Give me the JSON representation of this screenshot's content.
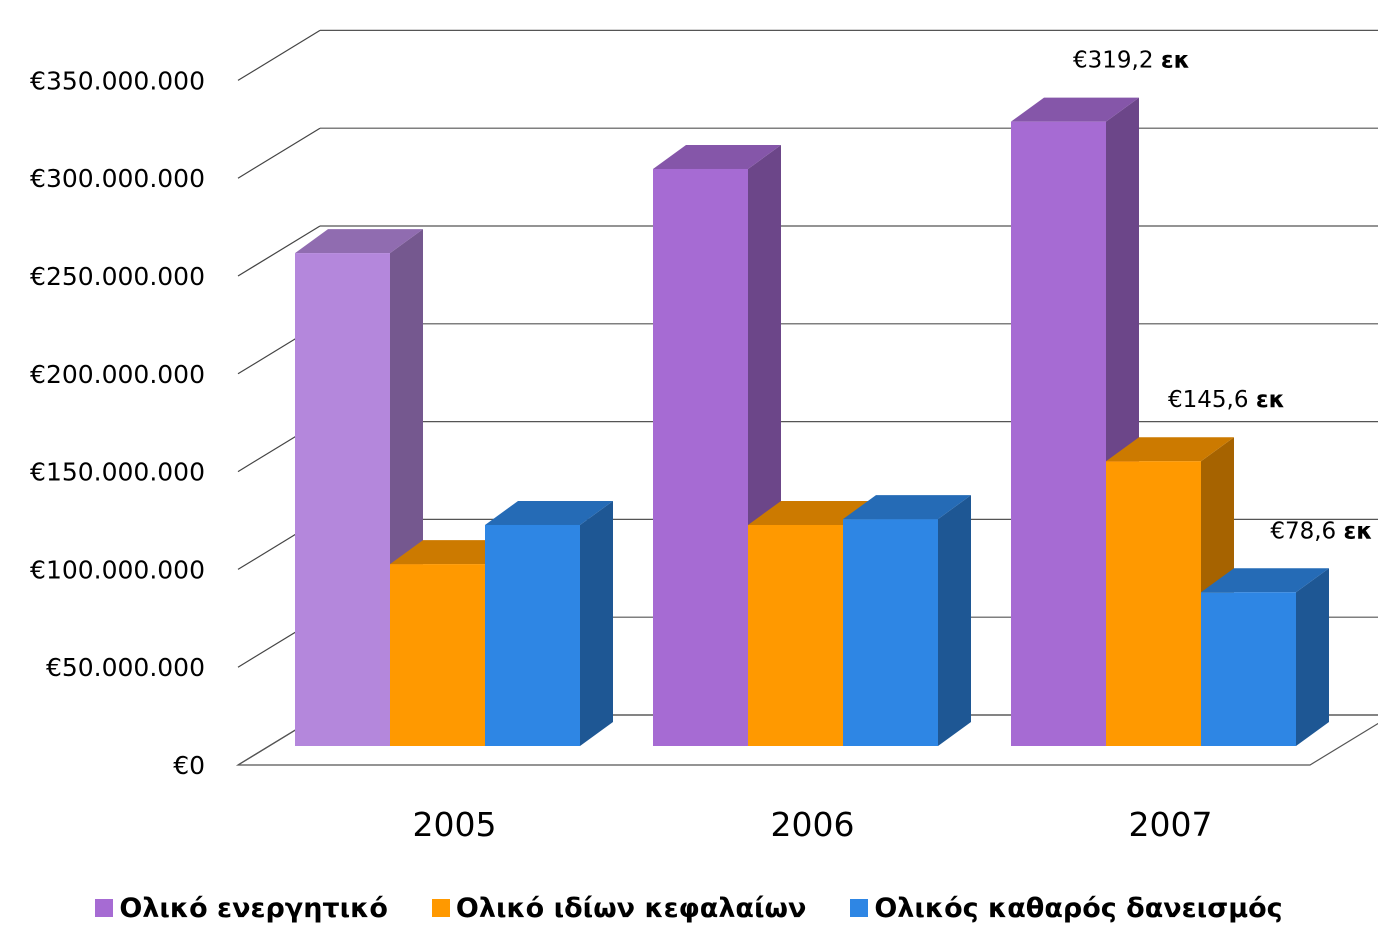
{
  "chart_data": {
    "type": "bar",
    "categories": [
      "2005",
      "2006",
      "2007"
    ],
    "series": [
      {
        "name": "Ολικό ενεργητικό",
        "values": [
          252000000,
          295000000,
          319200000
        ],
        "color": "#A66BD3"
      },
      {
        "name": "Ολικό ιδίων κεφαλαίων",
        "values": [
          93000000,
          113000000,
          145600000
        ],
        "color": "#FF9900"
      },
      {
        "name": "Ολικός καθαρός δανεισμός",
        "values": [
          113000000,
          116000000,
          78600000
        ],
        "color": "#2E86E4"
      }
    ],
    "ylim": [
      0,
      350000000
    ],
    "y_ticks": [
      "€0",
      "€50.000.000",
      "€100.000.000",
      "€150.000.000",
      "€200.000.000",
      "€250.000.000",
      "€300.000.000",
      "€350.000.000"
    ],
    "annotations": [
      {
        "series": 0,
        "category": 2,
        "value_text": "€319,2",
        "unit": "εκ"
      },
      {
        "series": 1,
        "category": 2,
        "value_text": "€145,6",
        "unit": "εκ"
      },
      {
        "series": 2,
        "category": 2,
        "value_text": "€78,6",
        "unit": "εκ"
      }
    ],
    "grid": true,
    "legend_position": "bottom",
    "style": "3d-clustered-column"
  }
}
